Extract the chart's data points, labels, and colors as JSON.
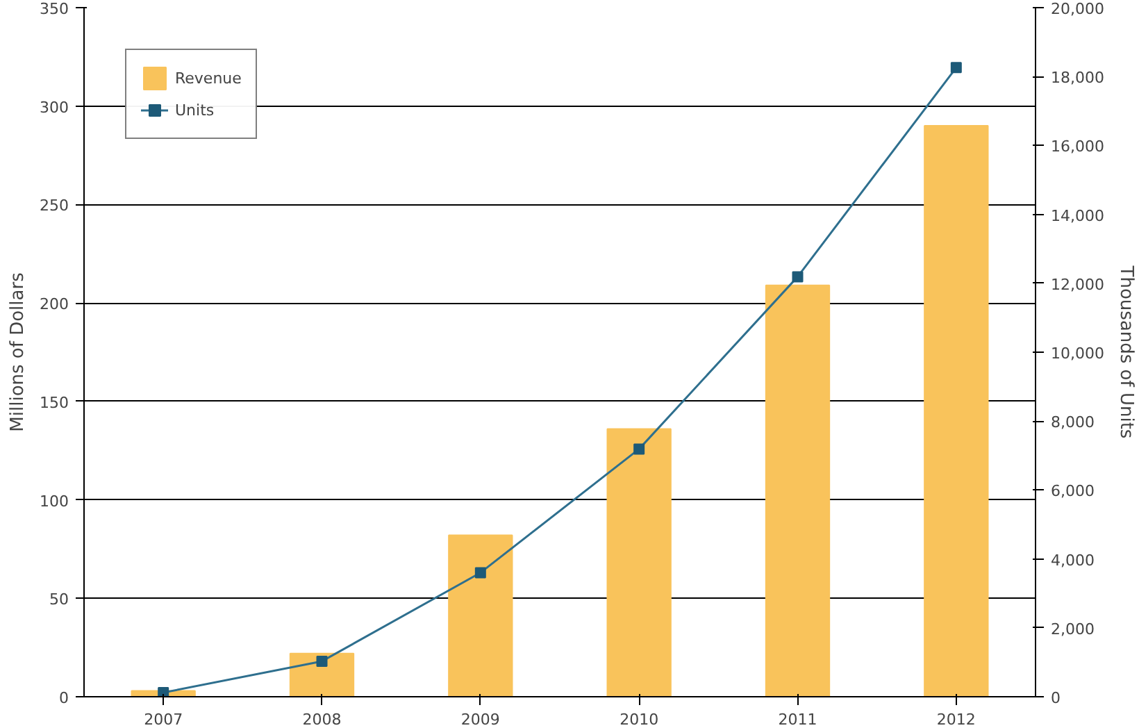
{
  "chart_data": {
    "type": "bar",
    "categories": [
      "2007",
      "2008",
      "2009",
      "2010",
      "2011",
      "2012"
    ],
    "ylabel": "Millions of Dollars",
    "y2label": "Thousands of Units",
    "ylim": [
      0,
      350
    ],
    "yticks": [
      0,
      50,
      100,
      150,
      200,
      250,
      300,
      350
    ],
    "y2lim": [
      0,
      20000
    ],
    "y2ticks": [
      {
        "value": 0,
        "label": "0"
      },
      {
        "value": 2000,
        "label": "2,000"
      },
      {
        "value": 4000,
        "label": "4,000"
      },
      {
        "value": 6000,
        "label": "6,000"
      },
      {
        "value": 8000,
        "label": "8,000"
      },
      {
        "value": 10000,
        "label": "10,000"
      },
      {
        "value": 12000,
        "label": "12,000"
      },
      {
        "value": 14000,
        "label": "14,000"
      },
      {
        "value": 16000,
        "label": "16,000"
      },
      {
        "value": 18000,
        "label": "18,000"
      },
      {
        "value": 20000,
        "label": "20,000"
      }
    ],
    "grid": "y",
    "legend": "top left",
    "marker": "square",
    "series": [
      {
        "name": "Revenue",
        "color": "#f9c35b",
        "values": [
          3,
          22,
          82,
          136,
          209,
          290
        ]
      },
      {
        "name": "Units",
        "type": "line",
        "axis": "y2",
        "color": "#2e6f8e",
        "values": [
          120,
          1030,
          3600,
          7190,
          12190,
          18260
        ]
      }
    ]
  }
}
